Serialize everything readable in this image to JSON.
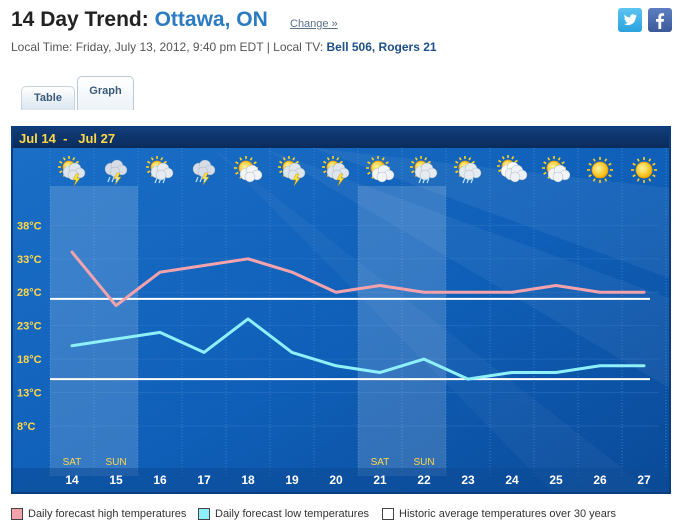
{
  "header": {
    "title_prefix": "14 Day Trend:",
    "city": "Ottawa, ON",
    "change_link": "Change »",
    "local_time": "Local Time: Friday, July 13, 2012, 9:40 pm EDT",
    "local_tv_label": "Local TV:",
    "local_tv_channels": "Bell 506, Rogers 21"
  },
  "social": {
    "twitter_icon": "twitter-icon",
    "facebook_icon": "facebook-icon"
  },
  "tabs": [
    {
      "label": "Table",
      "active": false
    },
    {
      "label": "Graph",
      "active": true
    }
  ],
  "chart_data": {
    "type": "line",
    "range_label": "Jul 14  -   Jul 27",
    "x": [
      "14",
      "15",
      "16",
      "17",
      "18",
      "19",
      "20",
      "21",
      "22",
      "23",
      "24",
      "25",
      "26",
      "27"
    ],
    "weekend_labels": {
      "0": "SAT",
      "1": "SUN",
      "7": "SAT",
      "8": "SUN"
    },
    "weekend_shaded_days": [
      0,
      1,
      7,
      8
    ],
    "y_ticks": [
      8,
      13,
      18,
      23,
      28,
      33,
      38
    ],
    "y_tick_labels": [
      "8°C",
      "13°C",
      "18°C",
      "23°C",
      "28°C",
      "33°C",
      "38°C"
    ],
    "ylim": [
      5,
      40
    ],
    "weather_icons": [
      "sun-tstorm",
      "tstorm",
      "sun-rain",
      "tstorm",
      "sun-cloud",
      "sun-tstorm",
      "sun-tstorm",
      "sun-cloud",
      "sun-rain",
      "sun-rain",
      "cloudy",
      "sun-cloud",
      "sunny",
      "sunny"
    ],
    "series": [
      {
        "name": "Daily forecast high temperatures",
        "color": "#f4a3ad",
        "values": [
          34,
          26,
          31,
          32,
          33,
          31,
          28,
          29,
          28,
          28,
          28,
          29,
          28,
          28
        ]
      },
      {
        "name": "Daily forecast low temperatures",
        "color": "#8ef0f8",
        "values": [
          20,
          21,
          22,
          19,
          24,
          19,
          17,
          16,
          18,
          15,
          16,
          16,
          17,
          17
        ]
      }
    ],
    "historic_average": {
      "name": "Historic average temperatures over 30 years",
      "high": 27,
      "low": 15,
      "color": "#ffffff"
    }
  },
  "legend": [
    {
      "label": "Daily forecast high temperatures",
      "color": "#f4a3ad"
    },
    {
      "label": "Daily forecast low temperatures",
      "color": "#8ef0f8"
    },
    {
      "label": "Historic average temperatures over 30 years",
      "color": "#ffffff"
    }
  ]
}
